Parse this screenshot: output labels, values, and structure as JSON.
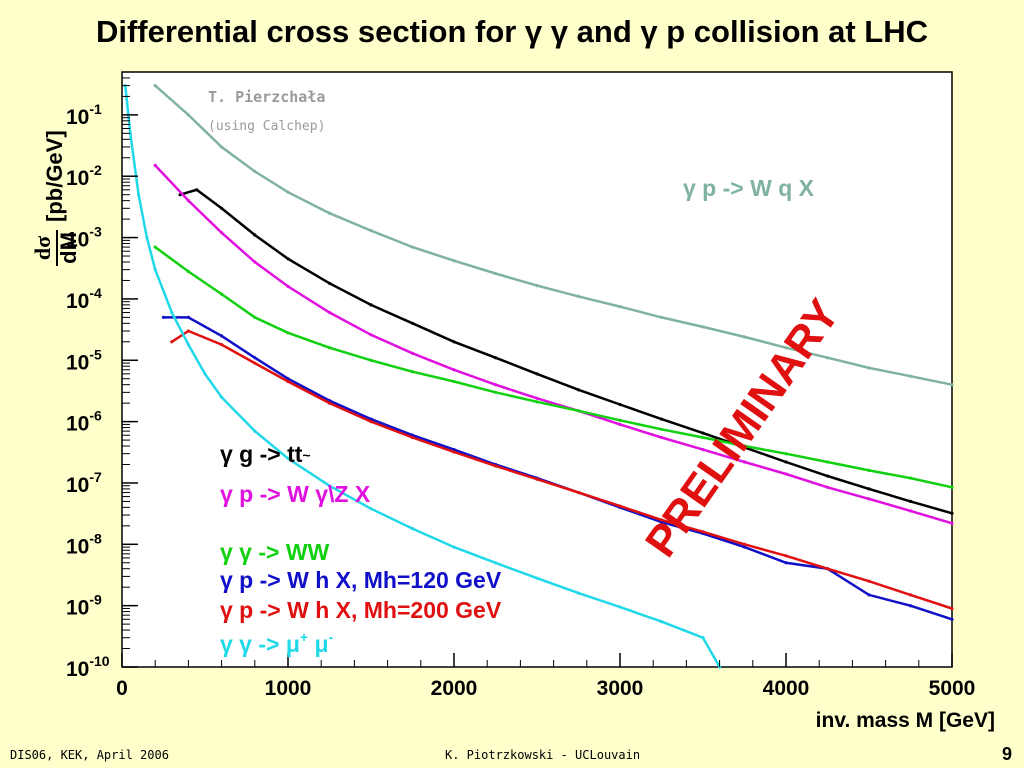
{
  "slide": {
    "title": "Differential cross section for γ γ and γ p collision at LHC",
    "footer_left": "DIS06, KEK, April 2006",
    "footer_center": "K. Piotrzkowski - UCLouvain",
    "page_number": "9"
  },
  "chart_data": {
    "type": "line",
    "xlabel": "inv. mass  M [GeV]",
    "ylabel_fraction_top": "dσ",
    "ylabel_fraction_bottom": "dM",
    "ylabel_unit": "[pb/GeV]",
    "xlim": [
      0,
      5000
    ],
    "ylim": [
      1e-10,
      0.5
    ],
    "ylog": true,
    "grid": false,
    "x_ticks": [
      "0",
      "1000",
      "2000",
      "3000",
      "4000",
      "5000"
    ],
    "x_tick_values": [
      0,
      1000,
      2000,
      3000,
      4000,
      5000
    ],
    "y_ticks": [
      {
        "base": "10",
        "exp": "-10",
        "value": 1e-10
      },
      {
        "base": "10",
        "exp": "-9",
        "value": 1e-09
      },
      {
        "base": "10",
        "exp": "-8",
        "value": 1e-08
      },
      {
        "base": "10",
        "exp": "-7",
        "value": 1e-07
      },
      {
        "base": "10",
        "exp": "-6",
        "value": 1e-06
      },
      {
        "base": "10",
        "exp": "-5",
        "value": 1e-05
      },
      {
        "base": "10",
        "exp": "-4",
        "value": 0.0001
      },
      {
        "base": "10",
        "exp": "-3",
        "value": 0.001
      },
      {
        "base": "10",
        "exp": "-2",
        "value": 0.01
      },
      {
        "base": "10",
        "exp": "-1",
        "value": 0.1
      }
    ],
    "annotations": {
      "author": "T. Pierzchała",
      "tool": "(using Calchep)",
      "watermark": "PRELIMINARY"
    },
    "series": [
      {
        "name": "γ p -> W q X",
        "label_parts": [
          "γ p -> W q X"
        ],
        "color": "#7fb3a0",
        "x": [
          200,
          400,
          600,
          800,
          1000,
          1250,
          1500,
          1750,
          2000,
          2250,
          2500,
          2750,
          3000,
          3250,
          3500,
          3750,
          4000,
          4250,
          4500,
          4750,
          5000
        ],
        "y": [
          0.3,
          0.1,
          0.03,
          0.012,
          0.0055,
          0.0025,
          0.0013,
          0.0007,
          0.00042,
          0.00026,
          0.000165,
          0.00011,
          7.5e-05,
          5e-05,
          3.5e-05,
          2.4e-05,
          1.6e-05,
          1.1e-05,
          7.5e-06,
          5.5e-06,
          4e-06
        ]
      },
      {
        "name": "γ g -> tt~",
        "label_parts": [
          "γ g -> tt",
          "~"
        ],
        "color": "#000000",
        "x": [
          350,
          450,
          600,
          800,
          1000,
          1250,
          1500,
          1750,
          2000,
          2250,
          2500,
          2750,
          3000,
          3250,
          3500,
          3750,
          4000,
          4250,
          4500,
          4750,
          5000
        ],
        "y": [
          0.005,
          0.006,
          0.003,
          0.0011,
          0.00045,
          0.00018,
          8e-05,
          4e-05,
          2e-05,
          1.1e-05,
          6e-06,
          3.3e-06,
          1.9e-06,
          1.1e-06,
          6.5e-07,
          3.8e-07,
          2.2e-07,
          1.3e-07,
          8e-08,
          5e-08,
          3.2e-08
        ]
      },
      {
        "name": "γ p -> W γ\\Z X",
        "label_parts": [
          "γ p -> W γ\\Z X"
        ],
        "color": "#e010e0",
        "x": [
          200,
          400,
          600,
          800,
          1000,
          1250,
          1500,
          1750,
          2000,
          2250,
          2500,
          2750,
          3000,
          3250,
          3500,
          3750,
          4000,
          4250,
          4500,
          4750,
          5000
        ],
        "y": [
          0.015,
          0.004,
          0.0012,
          0.0004,
          0.00016,
          6e-05,
          2.6e-05,
          1.3e-05,
          7e-06,
          4e-06,
          2.4e-06,
          1.5e-06,
          9e-07,
          5.5e-07,
          3.5e-07,
          2.2e-07,
          1.4e-07,
          8.5e-08,
          5.5e-08,
          3.5e-08,
          2.2e-08
        ]
      },
      {
        "name": "γ γ -> WW",
        "label_parts": [
          "γ γ -> WW"
        ],
        "color": "#10d010",
        "x": [
          200,
          400,
          600,
          800,
          1000,
          1250,
          1500,
          1750,
          2000,
          2250,
          2500,
          2750,
          3000,
          3250,
          3500,
          3750,
          4000,
          4250,
          4500,
          4750,
          5000
        ],
        "y": [
          0.0007,
          0.00028,
          0.00012,
          5e-05,
          2.8e-05,
          1.6e-05,
          1e-05,
          6.5e-06,
          4.5e-06,
          3e-06,
          2.1e-06,
          1.5e-06,
          1.05e-06,
          7.5e-07,
          5.5e-07,
          4e-07,
          3e-07,
          2.2e-07,
          1.6e-07,
          1.2e-07,
          8.5e-08
        ]
      },
      {
        "name": "γ p -> W h X, Mh=120 GeV",
        "label_parts": [
          "γ p -> W h X, Mh=120 GeV"
        ],
        "color": "#1010c8",
        "x": [
          250,
          400,
          600,
          800,
          1000,
          1250,
          1500,
          1750,
          2000,
          2250,
          2500,
          2750,
          3000,
          3250,
          3500,
          3750,
          4000,
          4250,
          4500,
          4750,
          5000
        ],
        "y": [
          5e-05,
          5e-05,
          2.5e-05,
          1.1e-05,
          5e-06,
          2.2e-06,
          1.1e-06,
          6e-07,
          3.5e-07,
          2e-07,
          1.2e-07,
          7e-08,
          4e-08,
          2.3e-08,
          1.5e-08,
          9e-09,
          5e-09,
          4e-09,
          1.5e-09,
          1e-09,
          6e-10
        ]
      },
      {
        "name": "γ p -> W h X, Mh=200 GeV",
        "label_parts": [
          "γ p -> W h X, Mh=200 GeV"
        ],
        "color": "#e01010",
        "x": [
          300,
          400,
          600,
          800,
          1000,
          1250,
          1500,
          1750,
          2000,
          2250,
          2500,
          2750,
          3000,
          3250,
          3500,
          3750,
          4000,
          4250,
          4500,
          4750,
          5000
        ],
        "y": [
          2e-05,
          3e-05,
          1.8e-05,
          9e-06,
          4.5e-06,
          2e-06,
          1e-06,
          5.5e-07,
          3.2e-07,
          1.9e-07,
          1.15e-07,
          7e-08,
          4.2e-08,
          2.5e-08,
          1.6e-08,
          1e-08,
          6.5e-09,
          4e-09,
          2.5e-09,
          1.5e-09,
          9e-10
        ]
      },
      {
        "name": "γ γ -> μ+ μ-",
        "label_parts": [
          "γ γ -> μ",
          "+",
          " μ",
          "-"
        ],
        "color": "#20d8e8",
        "x": [
          20,
          50,
          100,
          150,
          200,
          300,
          400,
          500,
          600,
          800,
          1000,
          1250,
          1500,
          1750,
          2000,
          2250,
          2500,
          2750,
          3000,
          3250,
          3500,
          3600
        ],
        "y": [
          0.3,
          0.05,
          0.005,
          0.001,
          0.0003,
          6e-05,
          1.8e-05,
          6e-06,
          2.5e-06,
          7e-07,
          2.5e-07,
          9e-08,
          3.8e-08,
          1.8e-08,
          9e-09,
          5e-09,
          2.8e-09,
          1.6e-09,
          9.5e-10,
          5.5e-10,
          3e-10,
          1e-10
        ]
      }
    ]
  }
}
